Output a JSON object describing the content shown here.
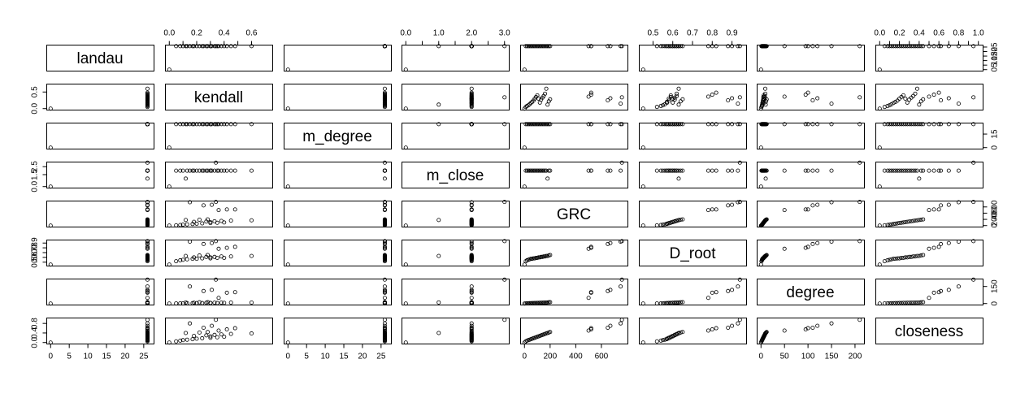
{
  "chart_data": {
    "type": "scatter",
    "title": "",
    "variables": [
      {
        "name": "landau",
        "label": "landau",
        "range": [
          0,
          26.5
        ],
        "ticks": [
          0,
          5,
          10,
          15,
          20,
          25
        ],
        "tick_labels": [
          "0",
          "5",
          "10",
          "15",
          "20",
          "25"
        ]
      },
      {
        "name": "kendall",
        "label": "kendall",
        "range": [
          0,
          0.72
        ],
        "ticks": [
          0.0,
          0.5
        ],
        "tick_labels": [
          "0.0",
          "0.5"
        ],
        "outer_ticks": [
          0.0,
          0.1,
          0.2,
          0.3,
          0.4,
          0.5,
          0.6
        ],
        "outer_tick_labels": [
          "0.0",
          "0.2",
          "0.4",
          "0.6"
        ]
      },
      {
        "name": "m_degree",
        "label": "m_degree",
        "range": [
          0,
          26.5
        ],
        "ticks": [
          0,
          5,
          10,
          15,
          20,
          25
        ],
        "tick_labels": [
          "0",
          "5",
          "10",
          "15",
          "20",
          "25"
        ],
        "side_ticks": [
          0,
          15
        ],
        "side_tick_labels": [
          "0",
          "15"
        ]
      },
      {
        "name": "m_close",
        "label": "m_close",
        "range": [
          0,
          3.0
        ],
        "ticks": [
          0.0,
          1.5,
          2.5
        ],
        "tick_labels": [
          "0.0",
          "1.5",
          "2.5"
        ],
        "outer_ticks": [
          0.0,
          0.5,
          1.0,
          1.5,
          2.0,
          2.5,
          3.0
        ],
        "outer_tick_labels": [
          "0.0",
          "1.0",
          "2.0",
          "3.0"
        ]
      },
      {
        "name": "GRC",
        "label": "GRC",
        "range": [
          0,
          770
        ],
        "ticks": [
          0,
          200,
          400,
          600
        ],
        "tick_labels": [
          "0",
          "200",
          "400",
          "600"
        ]
      },
      {
        "name": "D_root",
        "label": "D_root",
        "range": [
          0.45,
          0.95
        ],
        "ticks": [
          0.5,
          0.6,
          0.7,
          0.8,
          0.9
        ],
        "tick_labels": [
          "0.5",
          "0.6",
          "0.7",
          "0.8",
          "0.9"
        ],
        "side_ticks": [
          0.5,
          0.7,
          0.9
        ],
        "side_tick_labels": [
          "0.5",
          "0.7",
          "0.9"
        ]
      },
      {
        "name": "degree",
        "label": "degree",
        "range": [
          0,
          210
        ],
        "ticks": [
          0,
          50,
          100,
          150,
          200
        ],
        "tick_labels": [
          "0",
          "50",
          "100",
          "150",
          "200"
        ],
        "side_ticks": [
          0,
          150
        ],
        "side_tick_labels": [
          "0",
          "150"
        ]
      },
      {
        "name": "closeness",
        "label": "closeness",
        "range": [
          0,
          1.0
        ],
        "ticks": [
          0.0,
          0.4,
          0.8
        ],
        "tick_labels": [
          "0.0",
          "0.4",
          "0.8"
        ],
        "outer_ticks": [
          0.0,
          0.1,
          0.2,
          0.3,
          0.4,
          0.5,
          0.6,
          0.7,
          0.8,
          0.9,
          1.0
        ],
        "outer_tick_labels": [
          "0.0",
          "0.2",
          "0.4",
          "0.6",
          "0.8",
          "1.0"
        ]
      }
    ],
    "observations": {
      "landau": [
        0,
        26,
        26,
        26,
        26,
        26,
        26,
        26,
        26,
        26,
        26,
        26,
        26,
        26,
        26,
        26,
        26,
        26,
        26,
        26,
        26,
        26,
        26,
        26,
        26,
        26,
        26,
        26
      ],
      "kendall": [
        0,
        0.05,
        0.08,
        0.1,
        0.13,
        0.17,
        0.2,
        0.24,
        0.3,
        0.35,
        0.4,
        0.3,
        0.18,
        0.27,
        0.33,
        0.38,
        0.45,
        0.6,
        0.12,
        0.22,
        0.28,
        0.36,
        0.42,
        0.48,
        0.25,
        0.31,
        0.15,
        0.34
      ],
      "m_degree": [
        0,
        26,
        26,
        26,
        26,
        26,
        26,
        26,
        26,
        26,
        26,
        26,
        26,
        26,
        26,
        26,
        26,
        26,
        26,
        26,
        26,
        26,
        26,
        26,
        26,
        26,
        26,
        26
      ],
      "m_close": [
        0,
        2,
        2,
        2,
        2,
        2,
        2,
        2,
        2,
        2,
        2,
        2,
        2,
        2,
        2,
        2,
        2,
        2,
        1,
        2,
        2,
        2,
        2,
        2,
        2,
        2,
        2,
        3
      ],
      "GRC": [
        0,
        10,
        20,
        30,
        40,
        50,
        60,
        70,
        80,
        90,
        100,
        110,
        120,
        130,
        140,
        150,
        160,
        170,
        180,
        190,
        200,
        500,
        520,
        520,
        650,
        670,
        750,
        760
      ],
      "D_root": [
        0.45,
        0.52,
        0.54,
        0.55,
        0.56,
        0.57,
        0.57,
        0.58,
        0.58,
        0.59,
        0.59,
        0.6,
        0.6,
        0.61,
        0.61,
        0.62,
        0.62,
        0.63,
        0.63,
        0.64,
        0.65,
        0.78,
        0.8,
        0.82,
        0.88,
        0.9,
        0.93,
        0.94
      ],
      "degree": [
        0,
        1,
        2,
        2,
        3,
        3,
        4,
        4,
        5,
        5,
        6,
        6,
        7,
        7,
        8,
        8,
        9,
        9,
        10,
        11,
        12,
        50,
        95,
        100,
        110,
        120,
        150,
        210
      ],
      "closeness": [
        0,
        0.05,
        0.08,
        0.1,
        0.12,
        0.14,
        0.16,
        0.18,
        0.2,
        0.22,
        0.24,
        0.26,
        0.28,
        0.3,
        0.32,
        0.34,
        0.36,
        0.38,
        0.4,
        0.42,
        0.44,
        0.5,
        0.55,
        0.6,
        0.62,
        0.7,
        0.8,
        0.95
      ]
    },
    "xlabel": "",
    "ylabel": "",
    "grid": false,
    "point_style": "open-circle"
  }
}
